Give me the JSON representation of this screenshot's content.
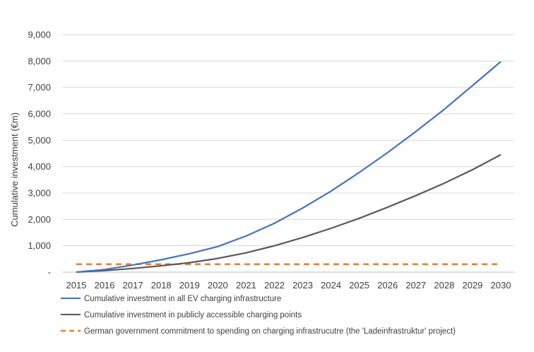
{
  "chart_data": {
    "type": "line",
    "title": "",
    "xlabel": "",
    "ylabel": "Cumulative investment (€m)",
    "x": [
      "2015",
      "2016",
      "2017",
      "2018",
      "2019",
      "2020",
      "2021",
      "2022",
      "2023",
      "2024",
      "2025",
      "2026",
      "2027",
      "2028",
      "2029",
      "2030"
    ],
    "ylim": [
      0,
      9000
    ],
    "yticks": [
      0,
      1000,
      2000,
      3000,
      4000,
      5000,
      6000,
      7000,
      8000,
      9000
    ],
    "ytick_labels": [
      "-",
      "1,000",
      "2,000",
      "3,000",
      "4,000",
      "5,000",
      "6,000",
      "7,000",
      "8,000",
      "9,000"
    ],
    "grid": true,
    "legend_position": "bottom",
    "series": [
      {
        "name": "Cumulative investment in all EV charging infrastructure",
        "color": "#4472C4",
        "style": "solid",
        "values": [
          0,
          100,
          270,
          470,
          700,
          970,
          1370,
          1850,
          2430,
          3070,
          3780,
          4530,
          5330,
          6170,
          7070,
          7980
        ]
      },
      {
        "name": "Cumulative investment in publicly accessible charging points",
        "color": "#595959",
        "style": "solid",
        "values": [
          0,
          60,
          140,
          240,
          360,
          520,
          730,
          1000,
          1310,
          1660,
          2040,
          2460,
          2900,
          3370,
          3880,
          4450
        ]
      },
      {
        "name": "German government commitment to spending on charging infrastrucutre (the 'Ladeinfrastruktur' project)",
        "color": "#ED7D31",
        "style": "dashed",
        "values": [
          300,
          300,
          300,
          300,
          300,
          300,
          300,
          300,
          300,
          300,
          300,
          300,
          300,
          300,
          300,
          300
        ]
      }
    ]
  }
}
